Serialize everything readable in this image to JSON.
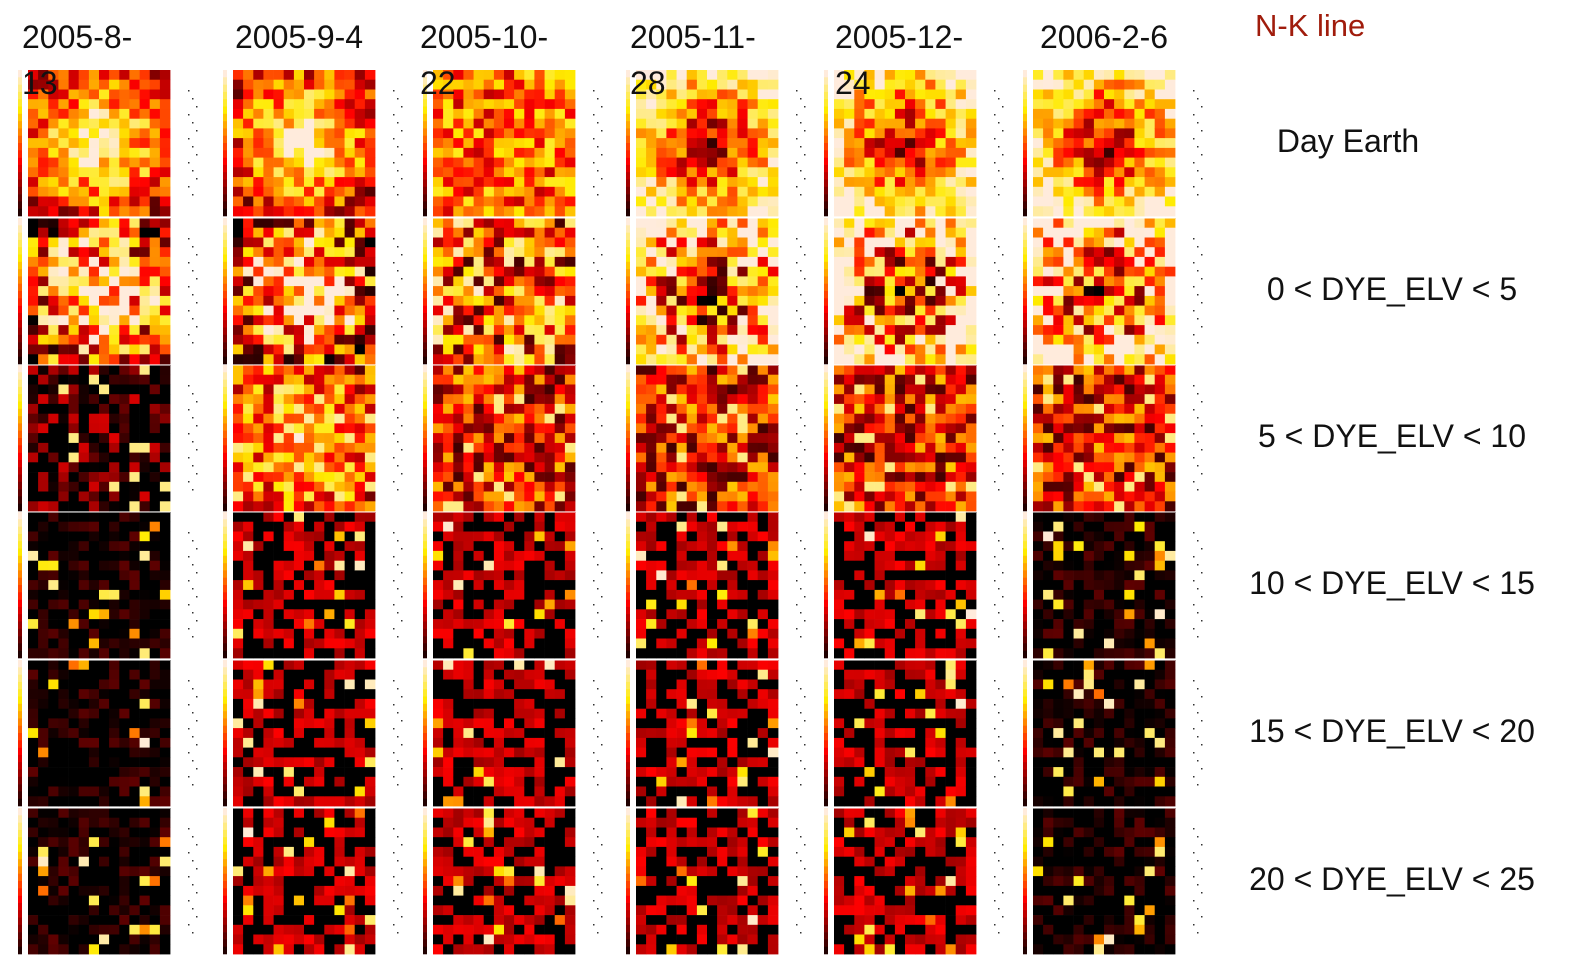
{
  "title": "N-K line",
  "columns": [
    "2005-8-13",
    "2005-9-4",
    "2005-10-22",
    "2005-11-28",
    "2005-12-24",
    "2006-2-6"
  ],
  "rows": [
    "Day Earth",
    "0 < DYE_ELV < 5",
    "5 < DYE_ELV < 10",
    "10 < DYE_ELV < 15",
    "15 < DYE_ELV < 20",
    "20 < DYE_ELV < 25"
  ]
}
